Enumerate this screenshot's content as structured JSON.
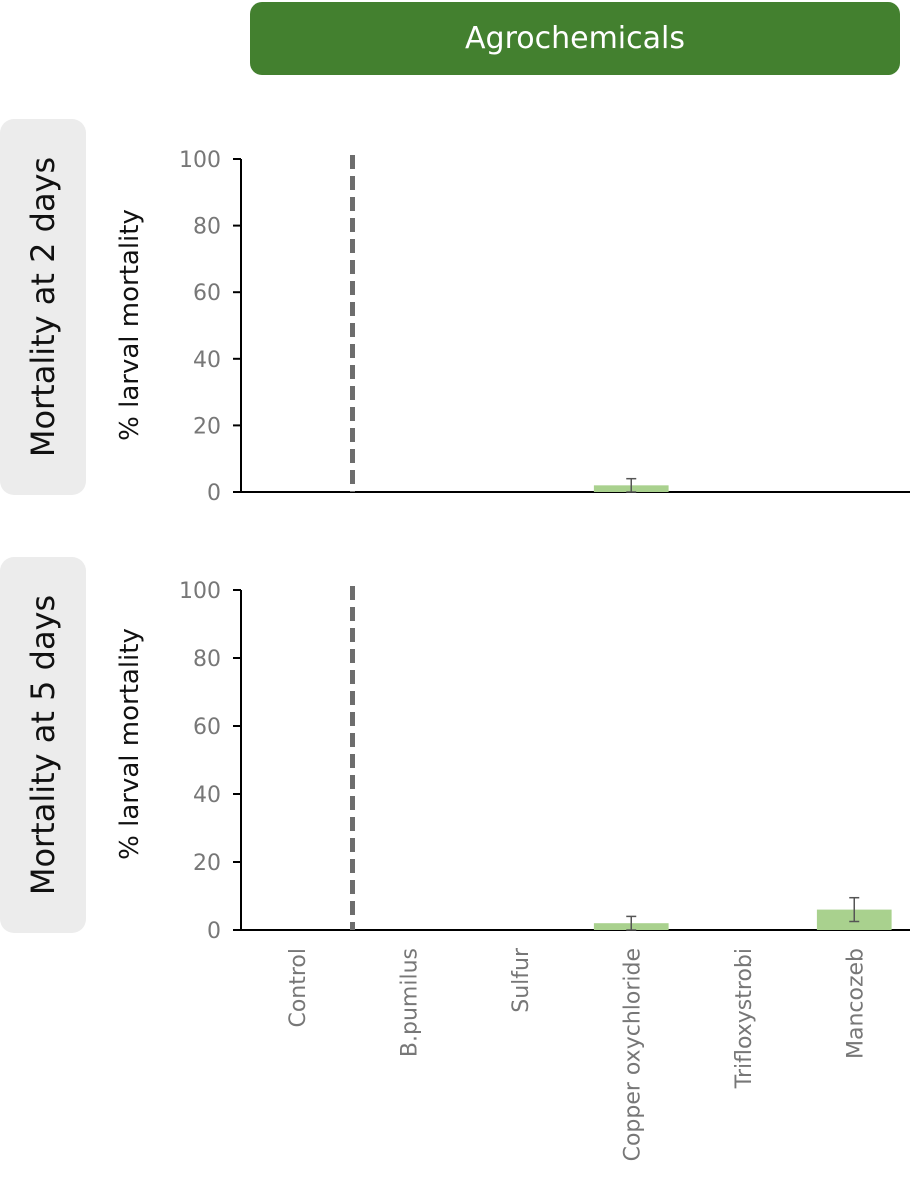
{
  "header": {
    "title": "Agrochemicals"
  },
  "panels": [
    {
      "side_label": "Mortality at 2 days",
      "ylabel": "% larval mortality"
    },
    {
      "side_label": "Mortality at 5 days",
      "ylabel": "% larval mortality"
    }
  ],
  "colors": {
    "banner": "#43802f",
    "bar": "#a9d18e",
    "axis": "#000000",
    "dashed_line": "#6d6d6d",
    "error_bar": "#555555"
  },
  "chart_data": [
    {
      "type": "bar",
      "title": "Mortality at 2 days",
      "ylabel": "% larval mortality",
      "xlabel": "",
      "ylim": [
        0,
        100
      ],
      "yticks": [
        0,
        20,
        40,
        60,
        80,
        100
      ],
      "categories": [
        "Control",
        "B.pumilus",
        "Sulfur",
        "Copper oxychloride",
        "Trifloxystrobi",
        "Mancozeb"
      ],
      "values": [
        0,
        0,
        0,
        2,
        0,
        0
      ],
      "errors": [
        0,
        0,
        0,
        2,
        0,
        0
      ],
      "separator_after_category": "Control",
      "show_category_labels": false
    },
    {
      "type": "bar",
      "title": "Mortality at 5 days",
      "ylabel": "% larval mortality",
      "xlabel": "",
      "ylim": [
        0,
        100
      ],
      "yticks": [
        0,
        20,
        40,
        60,
        80,
        100
      ],
      "categories": [
        "Control",
        "B.pumilus",
        "Sulfur",
        "Copper oxychloride",
        "Trifloxystrobi",
        "Mancozeb"
      ],
      "values": [
        0,
        0,
        0,
        2,
        0,
        6
      ],
      "errors": [
        0,
        0,
        0,
        2,
        0,
        3.5
      ],
      "separator_after_category": "Control",
      "show_category_labels": true
    }
  ]
}
